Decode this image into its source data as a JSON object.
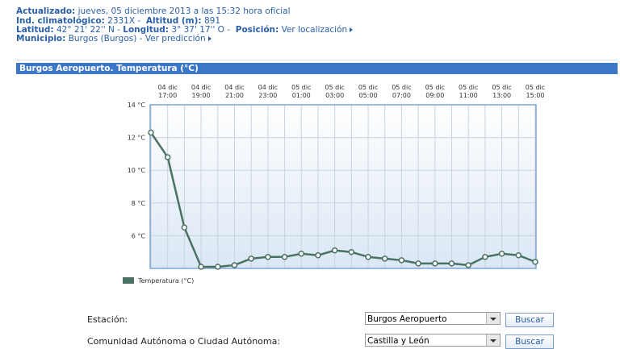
{
  "header": {
    "updated_label": "Actualizado:",
    "updated": "jueves, 05 diciembre 2013 a las 15:32 hora oficial",
    "ind_label": "Ind. climatológico:",
    "ind": "2331X",
    "alt_label": "Altitud (m):",
    "alt": "891",
    "lat_label": "Latitud:",
    "lat": "42° 21' 22'' N",
    "lon_label": "Longitud:",
    "lon": "3° 37' 17'' O",
    "pos_label": "Posición:",
    "pos_link": "Ver localización",
    "mun_label": "Municipio:",
    "mun": "Burgos (Burgos)",
    "pred_link": "Ver predicción"
  },
  "section_title": "Burgos Aeropuerto. Temperatura (°C)",
  "chart_data": {
    "type": "line",
    "categories": [
      null,
      "04 dic\n17:00",
      null,
      "04 dic\n19:00",
      null,
      "04 dic\n21:00",
      null,
      "04 dic\n23:00",
      null,
      "05 dic\n01:00",
      null,
      "05 dic\n03:00",
      null,
      "05 dic\n05:00",
      null,
      "05 dic\n07:00",
      null,
      "05 dic\n09:00",
      null,
      "05 dic\n11:00",
      null,
      "05 dic\n13:00",
      null,
      "05 dic\n15:00"
    ],
    "series": [
      {
        "name": "Temperatura (°C)",
        "color": "#4a7262",
        "values": [
          12.3,
          10.8,
          6.5,
          4.1,
          4.1,
          4.2,
          4.6,
          4.7,
          4.7,
          4.9,
          4.8,
          5.1,
          5.0,
          4.7,
          4.6,
          4.5,
          4.3,
          4.3,
          4.3,
          4.2,
          4.7,
          4.9,
          4.8,
          4.4
        ]
      }
    ],
    "ylim": [
      4,
      14
    ],
    "yticks": [
      {
        "value": 6,
        "label": "6 °C"
      },
      {
        "value": 8,
        "label": "8 °C"
      },
      {
        "value": 10,
        "label": "10 °C"
      },
      {
        "value": 12,
        "label": "12 °C"
      },
      {
        "value": 14,
        "label": "14 °C"
      }
    ],
    "grid": true
  },
  "form": {
    "station_label": "Estación:",
    "station_value": "Burgos Aeropuerto",
    "button1": "Buscar",
    "region_label": "Comunidad Autónoma o Ciudad Autónoma:",
    "region_value": "Castilla y León",
    "button2": "Buscar"
  }
}
